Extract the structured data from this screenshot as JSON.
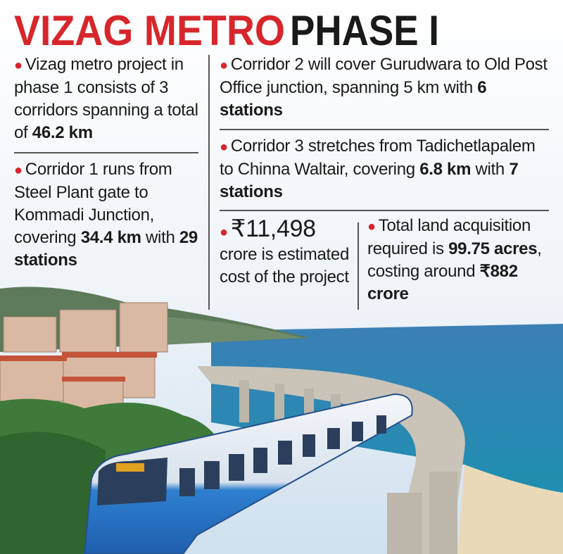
{
  "title": {
    "part1": "VIZAG METRO",
    "part2": "PHASE I"
  },
  "items": [
    {
      "segments": [
        {
          "text": "Vizag metro project in phase 1 consists of 3 corridors spanning a total of "
        },
        {
          "text": "46.2 km",
          "bold": true
        }
      ]
    },
    {
      "segments": [
        {
          "text": "Corridor 1 runs from Steel Plant gate to Kommadi Junction, covering "
        },
        {
          "text": "34.4 km",
          "bold": true
        },
        {
          "text": " with "
        },
        {
          "text": "29 stations",
          "bold": true
        }
      ]
    },
    {
      "segments": [
        {
          "text": "Corridor 2 will cover Gurudwara to Old Post Office junction, spanning 5 km with "
        },
        {
          "text": "6 stations",
          "bold": true
        }
      ]
    },
    {
      "segments": [
        {
          "text": "Corridor 3 stretches from Tadichetlapalem to Chinna Waltair, covering "
        },
        {
          "text": "6.8 km",
          "bold": true
        },
        {
          "text": " with "
        },
        {
          "text": "7 stations",
          "bold": true
        }
      ]
    }
  ],
  "cost": {
    "amount": "₹11,498",
    "text": "crore is estimated cost of the project"
  },
  "land": {
    "segments": [
      {
        "text": "Total land acquisition required is "
      },
      {
        "text": "99.75 acres",
        "bold": true
      },
      {
        "text": ", costing around "
      },
      {
        "text": "₹882 crore",
        "bold": true
      }
    ]
  }
}
